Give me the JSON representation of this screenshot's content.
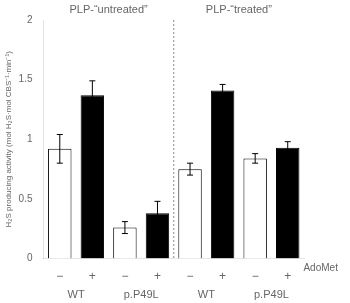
{
  "chart_data": {
    "type": "bar",
    "section_titles": [
      "PLP-“untreated”",
      "PLP-“treated”"
    ],
    "ylabel": "H₂S producing activity (mol H₂S·mol CBS⁻¹·min⁻¹)",
    "xlabel": "AdoMet",
    "group_labels": [
      "WT",
      "p.P49L",
      "WT",
      "p.P49L"
    ],
    "categories": [
      "−",
      "+",
      "−",
      "+",
      "−",
      "+",
      "−",
      "+"
    ],
    "values": [
      0.92,
      1.37,
      0.26,
      0.38,
      0.75,
      1.41,
      0.84,
      0.93
    ],
    "errors": [
      0.12,
      0.12,
      0.05,
      0.1,
      0.05,
      0.05,
      0.04,
      0.05
    ],
    "colors": [
      "white",
      "black",
      "white",
      "black",
      "white",
      "black",
      "white",
      "black"
    ],
    "ylim": [
      0,
      2
    ],
    "yticks": [
      0,
      0.5,
      1,
      1.5,
      2
    ],
    "grid": false
  }
}
